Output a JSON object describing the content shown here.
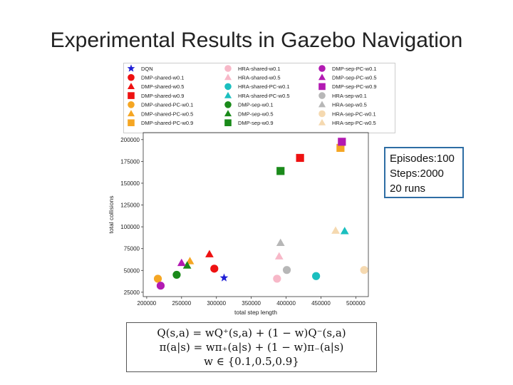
{
  "slide": {
    "title": "Experimental Results in Gazebo Navigation"
  },
  "info_box": {
    "line1": "Episodes:100",
    "line2": "Steps:2000",
    "line3": "20 runs"
  },
  "formulas": {
    "line1": "Q(s,a) = wQ⁺(s,a) + (1 − w)Q⁻(s,a)",
    "line2": "π(a|s) = wπ₊(a|s) + (1 − w)π₋(a|s)",
    "line3": "w ∈ {0.1,0.5,0.9}"
  },
  "chart_data": {
    "type": "scatter",
    "title": "",
    "xlabel": "total step length",
    "ylabel": "total collisions",
    "xlim": [
      195000,
      518000
    ],
    "ylim": [
      20000,
      208000
    ],
    "xticks": [
      200000,
      250000,
      300000,
      350000,
      400000,
      450000,
      500000
    ],
    "yticks": [
      25000,
      50000,
      75000,
      100000,
      125000,
      150000,
      175000,
      200000
    ],
    "grid": false,
    "legend_placement": "top, above plot",
    "series": [
      {
        "name": "DQN",
        "marker": "star",
        "color": "#1f1fd6",
        "x": 311000,
        "y": 41500
      },
      {
        "name": "DMP-shared-w0.1",
        "marker": "circle",
        "color": "#ee1111",
        "x": 297000,
        "y": 52000
      },
      {
        "name": "DMP-shared-w0.5",
        "marker": "triangle",
        "color": "#ee1111",
        "x": 290000,
        "y": 68500
      },
      {
        "name": "DMP-shared-w0.9",
        "marker": "square",
        "color": "#ee1111",
        "x": 420000,
        "y": 179000
      },
      {
        "name": "DMP-shared-PC-w0.1",
        "marker": "circle",
        "color": "#f5a623",
        "x": 216000,
        "y": 40500
      },
      {
        "name": "DMP-shared-PC-w0.5",
        "marker": "triangle",
        "color": "#f5a623",
        "x": 262000,
        "y": 60500
      },
      {
        "name": "DMP-shared-PC-w0.9",
        "marker": "square",
        "color": "#f5a623",
        "x": 478000,
        "y": 190500
      },
      {
        "name": "HRA-shared-w0.1",
        "marker": "circle",
        "color": "#f7b8c8",
        "x": 387000,
        "y": 40500
      },
      {
        "name": "HRA-shared-w0.5",
        "marker": "triangle",
        "color": "#f7b8c8",
        "x": 390000,
        "y": 66000
      },
      {
        "name": "HRA-shared-PC-w0.1",
        "marker": "circle",
        "color": "#1bbfbf",
        "x": 443000,
        "y": 43500
      },
      {
        "name": "HRA-shared-PC-w0.5",
        "marker": "triangle",
        "color": "#1bbfbf",
        "x": 484000,
        "y": 95000
      },
      {
        "name": "DMP-sep-w0.1",
        "marker": "circle",
        "color": "#1a8a1a",
        "x": 243000,
        "y": 45000
      },
      {
        "name": "DMP-sep-w0.5",
        "marker": "triangle",
        "color": "#1a8a1a",
        "x": 258000,
        "y": 55500
      },
      {
        "name": "DMP-sep-w0.9",
        "marker": "square",
        "color": "#1a8a1a",
        "x": 392000,
        "y": 164000
      },
      {
        "name": "DMP-sep-PC-w0.1",
        "marker": "circle",
        "color": "#b21ab2",
        "x": 220000,
        "y": 32500
      },
      {
        "name": "DMP-sep-PC-w0.5",
        "marker": "triangle",
        "color": "#b21ab2",
        "x": 250000,
        "y": 58500
      },
      {
        "name": "DMP-sep-PC-w0.9",
        "marker": "square",
        "color": "#b21ab2",
        "x": 480000,
        "y": 197500
      },
      {
        "name": "HRA-sep-w0.1",
        "marker": "circle",
        "color": "#b7b7b7",
        "x": 401000,
        "y": 50500
      },
      {
        "name": "HRA-sep-w0.5",
        "marker": "triangle",
        "color": "#b7b7b7",
        "x": 392000,
        "y": 81500
      },
      {
        "name": "HRA-sep-PC-w0.1",
        "marker": "circle",
        "color": "#f5d9b0",
        "x": 512000,
        "y": 50500
      },
      {
        "name": "HRA-sep-PC-w0.5",
        "marker": "triangle",
        "color": "#f5d9b0",
        "x": 471000,
        "y": 95500
      }
    ]
  }
}
